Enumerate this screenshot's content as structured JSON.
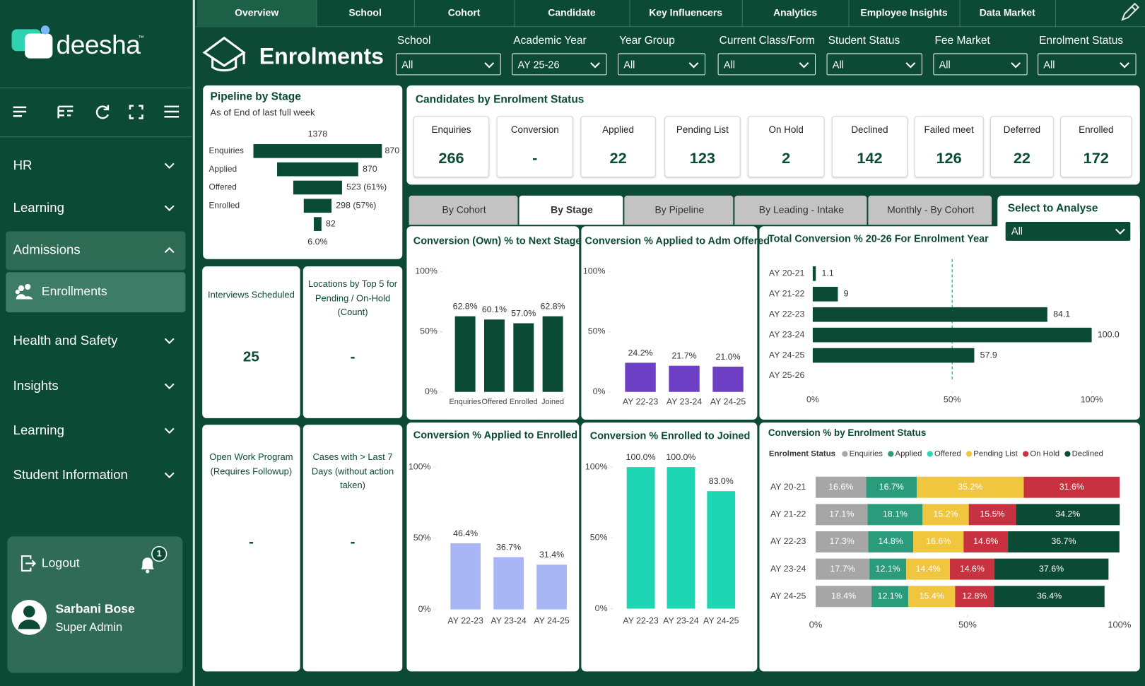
{
  "sidebar": {
    "brand": "deesha",
    "trademark": "™",
    "menu": [
      "HR",
      "Learning",
      "Admissions",
      "Health and Safety",
      "Insights",
      "Learning",
      "Student Information"
    ],
    "active_group": 2,
    "submenu": [
      "Enrollments"
    ],
    "logout": "Logout",
    "notifications": 1,
    "user": {
      "name": "Sarbani Bose",
      "role": "Super Admin"
    }
  },
  "tabs": {
    "items": [
      "Overview",
      "School",
      "Cohort",
      "Candidate",
      "Key Influencers",
      "Analytics",
      "Employee Insights",
      "Data Market"
    ],
    "active": 0
  },
  "header": {
    "title": "Enrolments",
    "filters": [
      {
        "label": "School",
        "value": "All"
      },
      {
        "label": "Academic Year",
        "value": "AY 25-26"
      },
      {
        "label": "Year Group",
        "value": "All"
      },
      {
        "label": "Current Class/Form",
        "value": "All"
      },
      {
        "label": "Student Status",
        "value": "All"
      },
      {
        "label": "Fee Market",
        "value": "All"
      },
      {
        "label": "Enrolment Status",
        "value": "All"
      }
    ]
  },
  "pipeline": {
    "type": "funnel",
    "title": "Pipeline by Stage",
    "subtitle": "As of End of last full week",
    "categories": [
      "Enquiries",
      "Applied",
      "Offered",
      "Enrolled",
      null
    ],
    "values": [
      1378,
      870,
      523,
      298,
      82
    ],
    "value_labels": [
      "1378",
      "870",
      "523 (61%)",
      "298 (57%)",
      "82"
    ],
    "annotations": [
      "870",
      "6.0%"
    ],
    "color": "#0b4a35"
  },
  "status": {
    "title": "Candidates by Enrolment Status",
    "cards": [
      {
        "label": "Enquiries",
        "value": 266
      },
      {
        "label": "Conversion",
        "value": "-"
      },
      {
        "label": "Applied",
        "value": 22
      },
      {
        "label": "Pending List",
        "value": 123
      },
      {
        "label": "On Hold",
        "value": 2
      },
      {
        "label": "Declined",
        "value": 142
      },
      {
        "label": "Failed meet",
        "value": 126
      },
      {
        "label": "Deferred",
        "value": 22
      },
      {
        "label": "Enrolled",
        "value": 172
      }
    ]
  },
  "kpis": [
    {
      "label": "Interviews Scheduled",
      "value": 25
    },
    {
      "label": "Locations by Top 5 for Pending / On-Hold (Count)",
      "value": "-"
    },
    {
      "label": "Open Work Program (Requires Followup)",
      "value": "-"
    },
    {
      "label": "Cases with > Last 7 Days (without action taken)",
      "value": "-"
    }
  ],
  "views": {
    "items": [
      "By Cohort",
      "By Stage",
      "By Pipeline",
      "By Leading - Intake",
      "Monthly - By Cohort"
    ],
    "active": 1
  },
  "analyse": {
    "label": "Select to Analyse",
    "value": "All"
  },
  "chart_data": [
    {
      "type": "bar",
      "title": "Conversion (Own) % to Next Stage",
      "categories": [
        "Enquiries",
        "Offered",
        "Enrolled",
        "Joined"
      ],
      "values": [
        62.8,
        60.1,
        57.0,
        62.8
      ],
      "value_labels": [
        "62.8%",
        "60.1%",
        "57.0%",
        "62.8%"
      ],
      "color": "#0b4a35",
      "ylim": [
        0,
        100
      ],
      "yticks": [
        {
          "value": 0,
          "label": "0%"
        },
        {
          "value": 50,
          "label": "50%"
        },
        {
          "value": 100,
          "label": "100%"
        }
      ]
    },
    {
      "type": "bar",
      "title": "Conversion % Applied to Adm Offered",
      "categories": [
        "AY 22-23",
        "AY 23-24",
        "AY 24-25"
      ],
      "values": [
        24.2,
        21.7,
        21.0
      ],
      "value_labels": [
        "24.2%",
        "21.7%",
        "21.0%"
      ],
      "color": "#6c3fc4",
      "ylim": [
        0,
        100
      ],
      "yticks": [
        {
          "value": 0,
          "label": "0%"
        },
        {
          "value": 50,
          "label": "50%"
        },
        {
          "value": 100,
          "label": "100%"
        }
      ]
    },
    {
      "type": "bar",
      "title": "Conversion % Applied to Enrolled",
      "categories": [
        "AY 22-23",
        "AY 23-24",
        "AY 24-25"
      ],
      "values": [
        46.4,
        36.7,
        31.4
      ],
      "value_labels": [
        "46.4%",
        "36.7%",
        "31.4%"
      ],
      "color": "#a9b6f5",
      "ylim": [
        0,
        100
      ],
      "yticks": [
        {
          "value": 0,
          "label": "0%"
        },
        {
          "value": 50,
          "label": "50%"
        },
        {
          "value": 100,
          "label": "100%"
        }
      ]
    },
    {
      "type": "bar",
      "title": "Conversion % Enrolled to Joined",
      "categories": [
        "AY 22-23",
        "AY 23-24",
        "AY 24-25"
      ],
      "values": [
        100.0,
        100.0,
        83.0
      ],
      "value_labels": [
        "100.0%",
        "100.0%",
        "83.0%"
      ],
      "color": "#1ed6b4",
      "ylim": [
        0,
        100
      ],
      "yticks": [
        {
          "value": 0,
          "label": "0%"
        },
        {
          "value": 50,
          "label": "50%"
        },
        {
          "value": 100,
          "label": "100%"
        }
      ]
    },
    {
      "type": "hbar",
      "title": "Total Conversion % 20-26 For Enrolment Year",
      "categories": [
        "AY 20-21",
        "AY 21-22",
        "AY 22-23",
        "AY 23-24",
        "AY 24-25",
        "AY 25-26"
      ],
      "values": [
        1.1,
        9,
        84.1,
        100,
        57.9,
        null
      ],
      "value_labels": [
        "1.1",
        "9",
        "84.1",
        "100.0",
        "57.9",
        null
      ],
      "color": "#0b4a35",
      "reference_line": 50,
      "xlim": [
        0,
        100
      ],
      "xticks": [
        {
          "value": 0,
          "label": "0%"
        },
        {
          "value": 50,
          "label": "50%"
        },
        {
          "value": 100,
          "label": "100%"
        }
      ]
    },
    {
      "type": "stacked_hbar",
      "title": "Conversion % by Enrolment Status",
      "legend_title": "Enrolment Status",
      "legend": "top-left",
      "categories": [
        "AY 20-21",
        "AY 21-22",
        "AY 22-23",
        "AY 23-24",
        "AY 24-25"
      ],
      "series": [
        {
          "name": "Enquiries",
          "color": "#a6a6a6",
          "values": [
            16.6,
            17.1,
            17.3,
            17.7,
            18.4
          ],
          "value_labels": [
            "16.6%",
            "17.1%",
            "17.3%",
            "17.7%",
            "18.4%"
          ]
        },
        {
          "name": "Applied",
          "color": "#2a9c7c",
          "values": [
            16.7,
            18.1,
            14.8,
            12.1,
            12.1
          ],
          "value_labels": [
            "16.7%",
            "18.1%",
            "14.8%",
            "12.1%",
            "12.1%"
          ]
        },
        {
          "name": "Offered",
          "color": "#2fd4b1",
          "values": [
            null,
            null,
            null,
            null,
            null
          ],
          "value_labels": [
            null,
            null,
            null,
            null,
            null
          ]
        },
        {
          "name": "Pending List",
          "color": "#f0c63e",
          "values": [
            35.2,
            15.2,
            16.6,
            14.4,
            15.4
          ],
          "value_labels": [
            "35.2%",
            "15.2%",
            "16.6%",
            "14.4%",
            "15.4%"
          ]
        },
        {
          "name": "On Hold",
          "color": "#c8313f",
          "values": [
            31.6,
            15.5,
            14.6,
            14.6,
            12.8
          ],
          "value_labels": [
            "31.6%",
            "15.5%",
            "14.6%",
            "14.6%",
            "12.8%"
          ]
        },
        {
          "name": "Declined",
          "color": "#0b4a35",
          "values": [
            null,
            34.2,
            36.7,
            37.6,
            36.4
          ],
          "value_labels": [
            null,
            "34.2%",
            "36.7%",
            "37.6%",
            "36.4%"
          ]
        }
      ],
      "xlim": [
        0,
        100
      ],
      "xticks": [
        {
          "value": 0,
          "label": "0%"
        },
        {
          "value": 50,
          "label": "50%"
        },
        {
          "value": 100,
          "label": "100%"
        }
      ]
    }
  ]
}
